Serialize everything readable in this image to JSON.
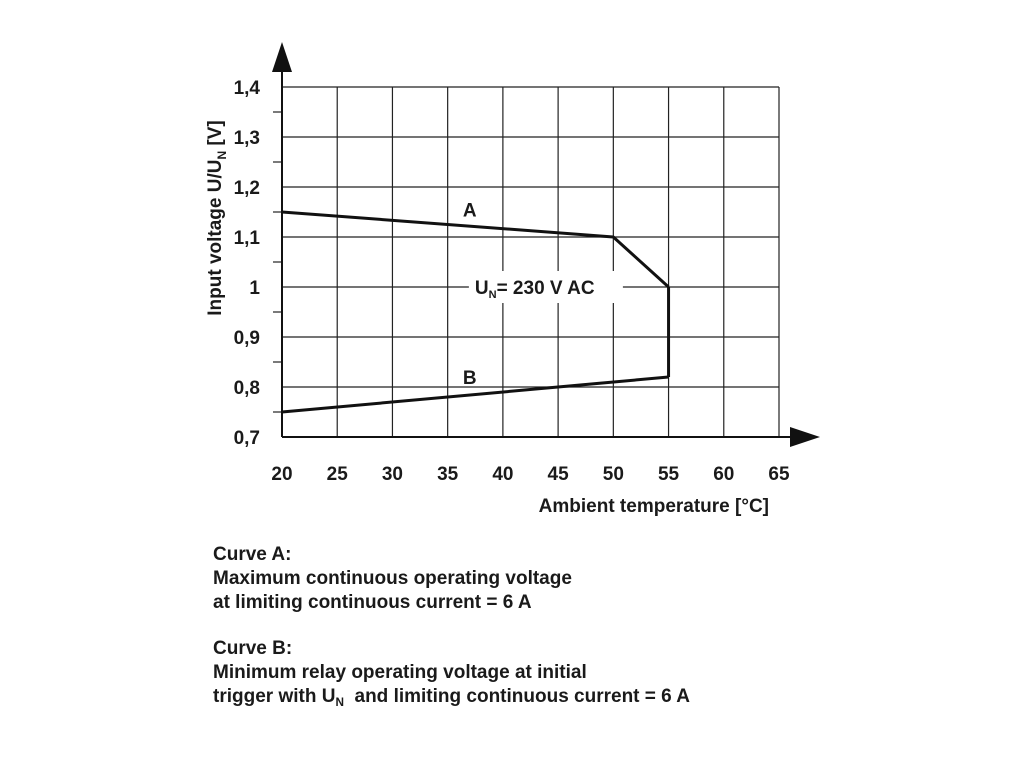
{
  "chart_data": {
    "type": "line",
    "xlabel": "Ambient temperature [°C]",
    "ylabel_main": "Input voltage U/U",
    "ylabel_sub": "N",
    "ylabel_tail": " [V]",
    "xlim": [
      20,
      65
    ],
    "ylim": [
      0.7,
      1.4
    ],
    "x_ticks": [
      "20",
      "25",
      "30",
      "35",
      "40",
      "45",
      "50",
      "55",
      "60",
      "65"
    ],
    "y_ticks": [
      "0,7",
      "0,8",
      "0,9",
      "1",
      "1,1",
      "1,2",
      "1,3",
      "1,4"
    ],
    "grid": true,
    "series": [
      {
        "name": "A",
        "points": [
          [
            20,
            1.15
          ],
          [
            50,
            1.1
          ],
          [
            55,
            1.0
          ]
        ]
      },
      {
        "name": "B",
        "points": [
          [
            20,
            0.75
          ],
          [
            55,
            0.82
          ]
        ]
      }
    ],
    "boundary": {
      "points": [
        [
          55,
          1.0
        ],
        [
          55,
          0.82
        ]
      ]
    },
    "annotation": {
      "main": "U",
      "sub": "N",
      "tail": "= 230 V AC",
      "x": 40,
      "y": 1.0
    },
    "curve_label_positions": {
      "A": [
        37,
        1.155
      ],
      "B": [
        37,
        0.82
      ]
    }
  },
  "notes": {
    "curve_a_title": "Curve A:",
    "curve_a_line1": "Maximum continuous operating voltage",
    "curve_a_line2": "at limiting continuous current = 6 A",
    "curve_b_title": "Curve B:",
    "curve_b_line1": "Minimum relay operating voltage at initial",
    "curve_b_line2_pre": "trigger with U",
    "curve_b_line2_sub": "N",
    "curve_b_line2_post": "  and limiting continuous current = 6 A"
  }
}
